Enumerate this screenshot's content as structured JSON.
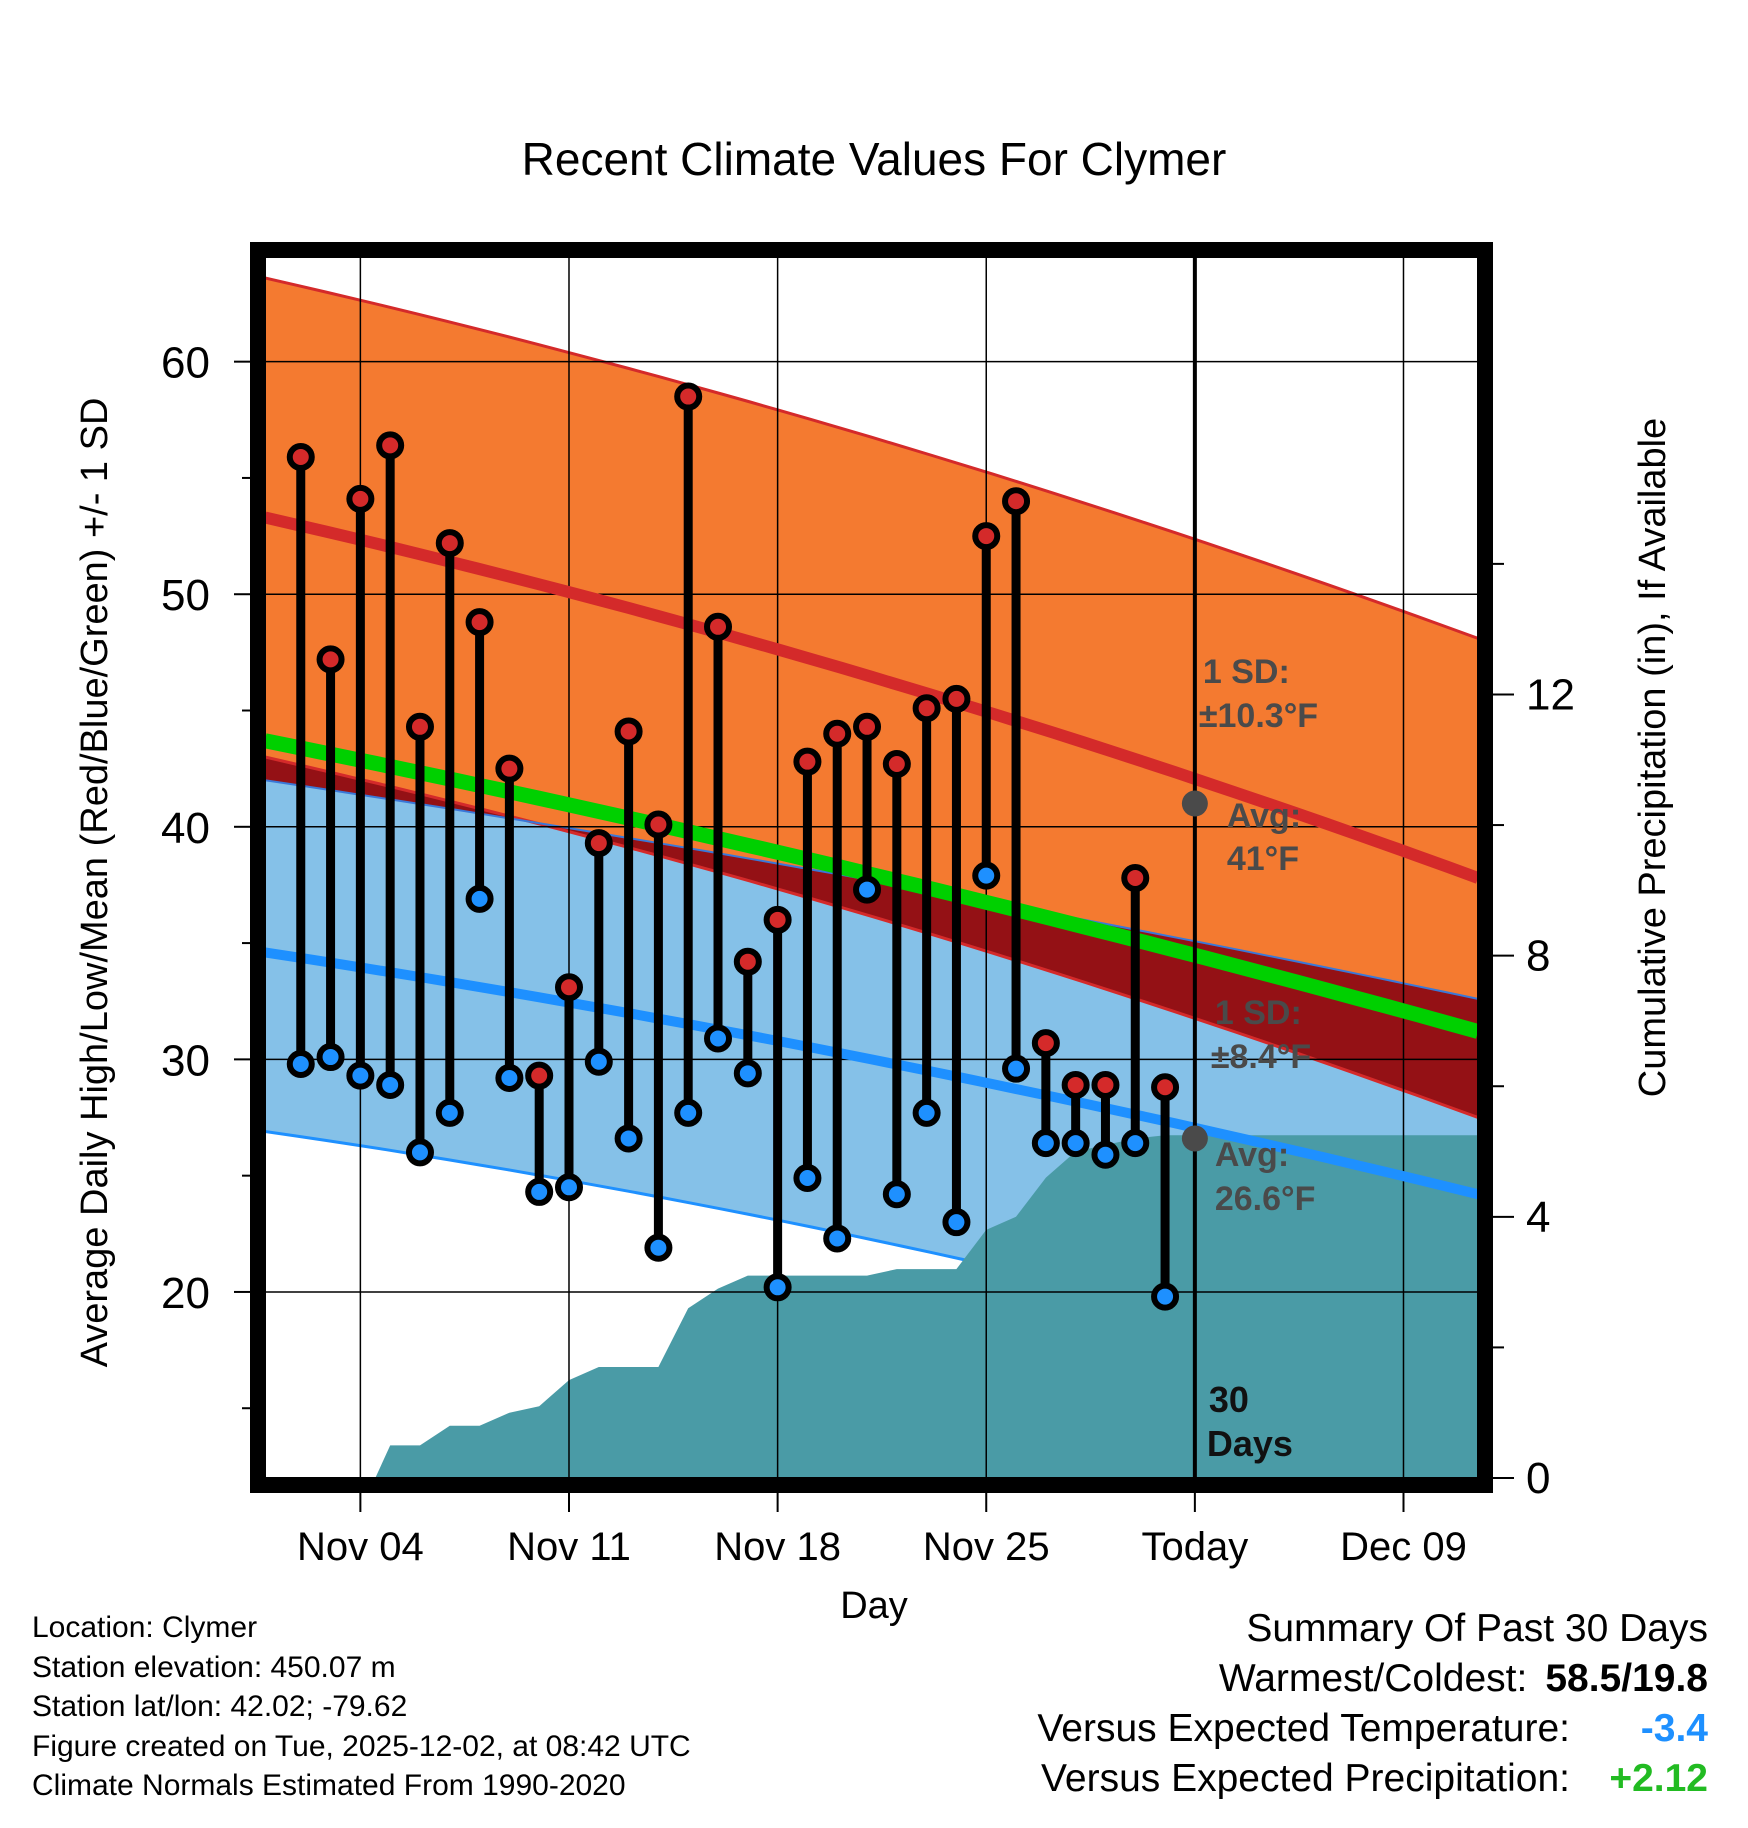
{
  "chart_data": {
    "type": "line",
    "title": "Recent Climate Values For Clymer",
    "xlabel": "Day",
    "ylabel": "Average Daily High/Low/Mean (Red/Blue/Green) +/- 1 SD",
    "y2label": "Cumulative Precipitation (in), If Available",
    "x_tick_labels": [
      "Nov 04",
      "Nov 11",
      "Nov 18",
      "Nov 25",
      "Today",
      "Dec 09"
    ],
    "x_tick_days": [
      4,
      11,
      18,
      25,
      32,
      39
    ],
    "xlim": [
      0.8,
      41.5
    ],
    "ylim": [
      12,
      64.5
    ],
    "y_ticks": [
      20,
      30,
      40,
      50,
      60
    ],
    "y2lim": [
      0,
      18.7
    ],
    "y2_ticks": [
      0,
      4,
      8,
      12
    ],
    "today_day": 32,
    "normals": {
      "days": [
        0.8,
        41.5
      ],
      "avg_high": [
        53.3,
        37.8
      ],
      "high_sd_upper": [
        63.6,
        48.1
      ],
      "high_sd_lower": [
        43.0,
        27.5
      ],
      "avg_mean": [
        43.7,
        31.2
      ],
      "avg_low": [
        34.6,
        24.2
      ],
      "low_sd_upper": [
        42.0,
        32.6
      ],
      "low_sd_lower": [
        26.9,
        15.8
      ]
    },
    "annotations": {
      "high_sd_label": "1 SD:",
      "high_sd_value": "±10.3°F",
      "high_avg_label": "Avg:",
      "high_avg_value": "41°F",
      "today_avg_high": 41.0,
      "low_sd_label": "1 SD:",
      "low_sd_value": "±8.4°F",
      "low_avg_label": "Avg:",
      "low_avg_value": "26.6°F",
      "today_avg_low": 26.6,
      "window_label_1": "30",
      "window_label_2": "Days"
    },
    "observations": {
      "days": [
        2,
        3,
        4,
        5,
        6,
        7,
        8,
        9,
        10,
        11,
        12,
        13,
        14,
        15,
        16,
        17,
        18,
        19,
        20,
        21,
        22,
        23,
        24,
        25,
        26,
        27,
        28,
        29,
        30,
        31
      ],
      "highs": [
        55.9,
        47.2,
        54.1,
        56.4,
        44.3,
        52.2,
        48.8,
        42.5,
        29.3,
        33.1,
        39.3,
        44.1,
        40.1,
        58.5,
        48.6,
        34.2,
        36.0,
        42.8,
        44.0,
        44.3,
        42.7,
        45.1,
        45.5,
        52.5,
        54.0,
        30.7,
        28.9,
        28.9,
        37.8,
        28.8
      ],
      "lows": [
        29.8,
        30.1,
        29.3,
        28.9,
        26.0,
        27.7,
        36.9,
        29.2,
        24.3,
        24.5,
        29.9,
        26.6,
        21.9,
        27.7,
        30.9,
        29.4,
        20.2,
        24.9,
        22.3,
        37.3,
        24.2,
        27.7,
        23.0,
        37.9,
        29.6,
        26.4,
        26.4,
        25.9,
        26.4,
        19.8
      ],
      "cumulative_precip": [
        0,
        0,
        0,
        0.5,
        0.5,
        0.8,
        0.8,
        1.0,
        1.1,
        1.5,
        1.7,
        1.7,
        1.7,
        2.6,
        2.9,
        3.1,
        3.1,
        3.1,
        3.1,
        3.1,
        3.2,
        3.2,
        3.2,
        3.8,
        4.0,
        4.6,
        5.0,
        5.1,
        5.2,
        5.25,
        5.25
      ],
      "cumulative_precip_days": [
        1.5,
        3.5,
        4.5,
        5,
        6,
        7,
        8,
        9,
        10,
        11,
        12,
        13,
        14,
        15,
        16,
        17,
        18,
        19,
        20,
        21,
        22,
        23,
        24,
        25,
        26,
        27,
        28,
        29,
        30,
        31,
        41.5
      ]
    },
    "colors": {
      "high_band": "#f47a30",
      "low_band": "#85c1e8",
      "overlap": "#941115",
      "avg_high": "#d42a2a",
      "avg_low": "#1e90ff",
      "avg_mean": "#00d000",
      "precip": "#4a9ba6",
      "high_dot": "#d42a2a",
      "low_dot": "#1e90ff"
    }
  },
  "location_info": {
    "location": "Location: Clymer",
    "elevation": "Station elevation: 450.07 m",
    "latlon": "Station lat/lon: 42.02; -79.62",
    "created": "Figure created on Tue, 2025-12-02, at 08:42 UTC",
    "normals": "Climate Normals Estimated From 1990-2020"
  },
  "summary": {
    "title": "Summary Of Past 30 Days",
    "warmest_label": "Warmest/Coldest:",
    "warmest_value": "58.5/19.8",
    "temp_label": "Versus Expected Temperature:",
    "temp_value": "-3.4",
    "temp_color": "#1e90ff",
    "precip_label": "Versus Expected Precipitation:",
    "precip_value": "+2.12",
    "precip_color": "#22bb22"
  }
}
